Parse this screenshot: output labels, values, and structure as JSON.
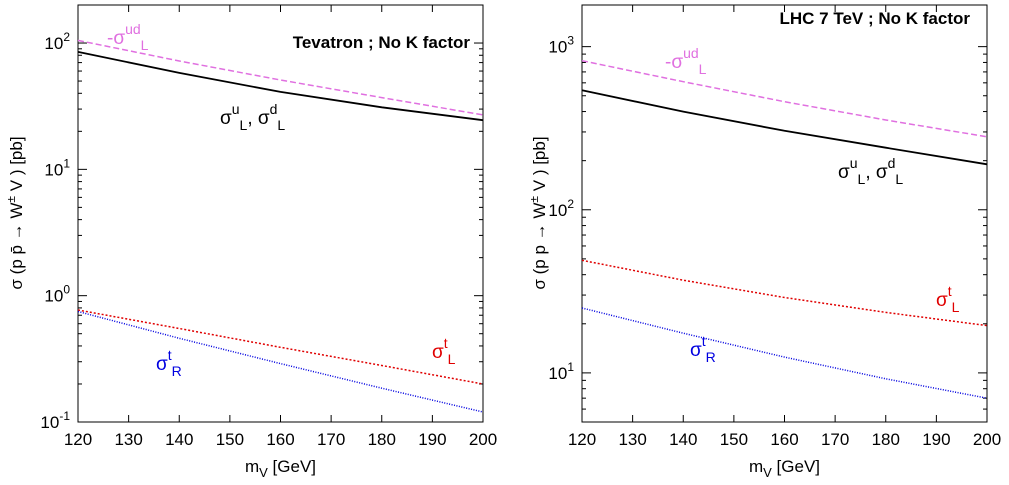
{
  "colors": {
    "axis": "#000000",
    "black_series": "#000000",
    "violet_series": "#e070e0",
    "red_series": "#e00000",
    "blue_series": "#0000e0"
  },
  "chart_data": [
    {
      "type": "line",
      "title": "Tevatron ; No K factor",
      "xlabel": "m_V [GeV]",
      "ylabel": "σ (p p̄ → W± V ) [pb]",
      "xlim": [
        120,
        200
      ],
      "ylim": [
        0.1,
        200
      ],
      "yscale": "log",
      "grid": false,
      "xticks": [
        120,
        130,
        140,
        150,
        160,
        170,
        180,
        190,
        200
      ],
      "yticks": [
        0.1,
        1,
        10,
        100
      ],
      "ytick_labels": [
        {
          "base": "10",
          "exp": "-1"
        },
        {
          "base": "10",
          "exp": "0"
        },
        {
          "base": "10",
          "exp": "1"
        },
        {
          "base": "10",
          "exp": "2"
        }
      ],
      "series": [
        {
          "label": {
            "pre": "-σ",
            "sub": "L",
            "sup": "ud"
          },
          "color": "violet_series",
          "dash": "dashed",
          "x": [
            120,
            140,
            160,
            180,
            200
          ],
          "y": [
            105,
            72,
            51,
            37,
            27
          ]
        },
        {
          "label": {
            "pre": "σ",
            "sub": "L",
            "sup": "u",
            "mid": ", σ",
            "sub2": "L",
            "sup2": "d"
          },
          "color": "black_series",
          "dash": "solid",
          "x": [
            120,
            140,
            160,
            180,
            200
          ],
          "y": [
            85,
            58,
            41,
            31,
            24.5
          ]
        },
        {
          "label": {
            "pre": "σ",
            "sub": "L",
            "sup": "t"
          },
          "color": "red_series",
          "dash": "dotted",
          "x": [
            120,
            140,
            160,
            180,
            200
          ],
          "y": [
            0.77,
            0.55,
            0.39,
            0.28,
            0.2
          ]
        },
        {
          "label": {
            "pre": "σ",
            "sub": "R",
            "sup": "t"
          },
          "color": "blue_series",
          "dash": "finedot",
          "x": [
            120,
            140,
            160,
            180,
            200
          ],
          "y": [
            0.75,
            0.46,
            0.29,
            0.185,
            0.12
          ]
        }
      ]
    },
    {
      "type": "line",
      "title": "LHC 7 TeV ; No K factor",
      "xlabel": "m_V [GeV]",
      "ylabel": "σ (p p → W± V ) [pb]",
      "xlim": [
        120,
        200
      ],
      "ylim": [
        5,
        1800
      ],
      "yscale": "log",
      "grid": false,
      "xticks": [
        120,
        130,
        140,
        150,
        160,
        170,
        180,
        190,
        200
      ],
      "yticks": [
        10,
        100,
        1000
      ],
      "ytick_labels": [
        {
          "base": "10",
          "exp": "1"
        },
        {
          "base": "10",
          "exp": "2"
        },
        {
          "base": "10",
          "exp": "3"
        }
      ],
      "series": [
        {
          "label": {
            "pre": "-σ",
            "sub": "L",
            "sup": "ud"
          },
          "color": "violet_series",
          "dash": "dashed",
          "x": [
            120,
            140,
            160,
            180,
            200
          ],
          "y": [
            820,
            610,
            460,
            355,
            280
          ]
        },
        {
          "label": {
            "pre": "σ",
            "sub": "L",
            "sup": "u",
            "mid": ", σ",
            "sub2": "L",
            "sup2": "d"
          },
          "color": "black_series",
          "dash": "solid",
          "x": [
            120,
            140,
            160,
            180,
            200
          ],
          "y": [
            540,
            400,
            305,
            240,
            190
          ]
        },
        {
          "label": {
            "pre": "σ",
            "sub": "L",
            "sup": "t"
          },
          "color": "red_series",
          "dash": "dotted",
          "x": [
            120,
            140,
            160,
            180,
            200
          ],
          "y": [
            49,
            37,
            29,
            23.5,
            19.5
          ]
        },
        {
          "label": {
            "pre": "σ",
            "sub": "R",
            "sup": "t"
          },
          "color": "blue_series",
          "dash": "finedot",
          "x": [
            120,
            140,
            160,
            180,
            200
          ],
          "y": [
            25,
            17.5,
            12.5,
            9.2,
            7
          ]
        }
      ]
    }
  ]
}
